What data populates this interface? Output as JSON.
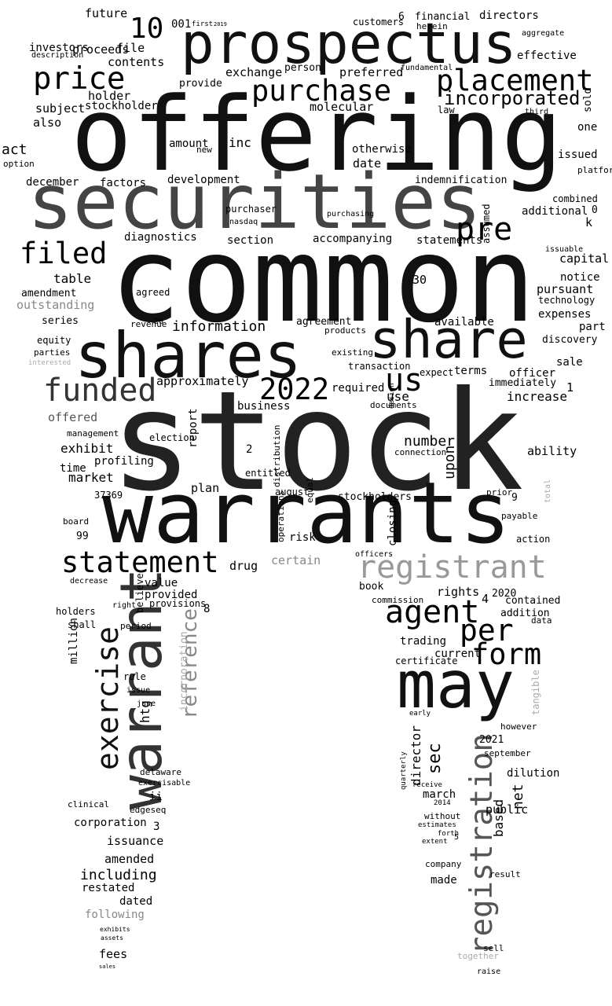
{
  "default_color": "#000000",
  "words": [
    {
      "text": "offering",
      "color": "#111111"
    },
    {
      "text": "common",
      "color": "#111111"
    },
    {
      "text": "stock",
      "color": "#222222"
    },
    {
      "text": "prospectus",
      "color": "#111111"
    },
    {
      "text": "securities",
      "color": "#444444"
    },
    {
      "text": "shares",
      "color": "#111111"
    },
    {
      "text": "share",
      "color": "#111111"
    },
    {
      "text": "warrants",
      "color": "#111111"
    },
    {
      "text": "warrant",
      "color": "#333333"
    },
    {
      "text": "may",
      "color": "#111111"
    },
    {
      "text": "registration",
      "color": "#555555"
    },
    {
      "text": "reference",
      "color": "#888888"
    },
    {
      "text": "exercise",
      "color": "#111111"
    },
    {
      "text": "registrant",
      "color": "#999999"
    },
    {
      "text": "statement"
    },
    {
      "text": "funded",
      "color": "#333333"
    },
    {
      "text": "2022"
    },
    {
      "text": "us"
    },
    {
      "text": "agent"
    },
    {
      "text": "per"
    },
    {
      "text": "form"
    },
    {
      "text": "pre"
    },
    {
      "text": "purchase"
    },
    {
      "text": "placement"
    },
    {
      "text": "price"
    },
    {
      "text": "filed"
    },
    {
      "text": "10"
    },
    {
      "text": "incorporated"
    },
    {
      "text": "sec"
    },
    {
      "text": "director"
    },
    {
      "text": "based"
    },
    {
      "text": "net"
    },
    {
      "text": "upon"
    },
    {
      "text": "closing"
    },
    {
      "text": "million"
    },
    {
      "text": "htg"
    },
    {
      "text": "incorporation",
      "color": "#aaaaaa"
    },
    {
      "text": "tangible",
      "color": "#aaaaaa"
    },
    {
      "text": "report"
    },
    {
      "text": "distribution"
    },
    {
      "text": "operations"
    },
    {
      "text": "equal"
    },
    {
      "text": "believe"
    },
    {
      "text": "sold"
    },
    {
      "text": "assumed"
    },
    {
      "text": "quarterly"
    },
    {
      "text": "design"
    },
    {
      "text": "total",
      "color": "#aaaaaa"
    },
    {
      "text": "future"
    },
    {
      "text": "001"
    },
    {
      "text": "first"
    },
    {
      "text": "2019"
    },
    {
      "text": "proceeds"
    },
    {
      "text": "file"
    },
    {
      "text": "investors"
    },
    {
      "text": "description"
    },
    {
      "text": "contents"
    },
    {
      "text": "holder"
    },
    {
      "text": "stockholder"
    },
    {
      "text": "subject"
    },
    {
      "text": "also"
    },
    {
      "text": "act"
    },
    {
      "text": "option"
    },
    {
      "text": "december"
    },
    {
      "text": "factors"
    },
    {
      "text": "development"
    },
    {
      "text": "amount"
    },
    {
      "text": "inc"
    },
    {
      "text": "new"
    },
    {
      "text": "exchange"
    },
    {
      "text": "person"
    },
    {
      "text": "preferred"
    },
    {
      "text": "provide"
    },
    {
      "text": "molecular"
    },
    {
      "text": "otherwise"
    },
    {
      "text": "date"
    },
    {
      "text": "customers"
    },
    {
      "text": "6"
    },
    {
      "text": "financial"
    },
    {
      "text": "directors"
    },
    {
      "text": "herein"
    },
    {
      "text": "effective"
    },
    {
      "text": "aggregate"
    },
    {
      "text": "fundamental"
    },
    {
      "text": "law"
    },
    {
      "text": "third"
    },
    {
      "text": "one"
    },
    {
      "text": "issued"
    },
    {
      "text": "platform"
    },
    {
      "text": "indemnification"
    },
    {
      "text": "additional"
    },
    {
      "text": "combined"
    },
    {
      "text": "0"
    },
    {
      "text": "k"
    },
    {
      "text": "diagnostics"
    },
    {
      "text": "section"
    },
    {
      "text": "accompanying"
    },
    {
      "text": "statements"
    },
    {
      "text": "nasdaq"
    },
    {
      "text": "purchaser"
    },
    {
      "text": "purchasing"
    },
    {
      "text": "capital"
    },
    {
      "text": "issuable"
    },
    {
      "text": "table"
    },
    {
      "text": "amendment"
    },
    {
      "text": "outstanding",
      "color": "#888888"
    },
    {
      "text": "series"
    },
    {
      "text": "agreed"
    },
    {
      "text": "notice"
    },
    {
      "text": "pursuant"
    },
    {
      "text": "technology"
    },
    {
      "text": "30"
    },
    {
      "text": "information"
    },
    {
      "text": "agreement"
    },
    {
      "text": "available"
    },
    {
      "text": "expenses"
    },
    {
      "text": "part"
    },
    {
      "text": "discovery"
    },
    {
      "text": "equity"
    },
    {
      "text": "parties"
    },
    {
      "text": "interested",
      "color": "#aaaaaa"
    },
    {
      "text": "revenue"
    },
    {
      "text": "20"
    },
    {
      "text": "products"
    },
    {
      "text": "existing"
    },
    {
      "text": "terms"
    },
    {
      "text": "officer"
    },
    {
      "text": "sale"
    },
    {
      "text": "transaction"
    },
    {
      "text": "expect"
    },
    {
      "text": "approximately"
    },
    {
      "text": "required"
    },
    {
      "text": "immediately"
    },
    {
      "text": "1"
    },
    {
      "text": "offered",
      "color": "#555555"
    },
    {
      "text": "business"
    },
    {
      "text": "use"
    },
    {
      "text": "documents"
    },
    {
      "text": "increase"
    },
    {
      "text": "management"
    },
    {
      "text": "election"
    },
    {
      "text": "exhibit"
    },
    {
      "text": "number"
    },
    {
      "text": "connection"
    },
    {
      "text": "ability"
    },
    {
      "text": "2"
    },
    {
      "text": "time"
    },
    {
      "text": "profiling"
    },
    {
      "text": "market"
    },
    {
      "text": "entitled"
    },
    {
      "text": "37369"
    },
    {
      "text": "plan"
    },
    {
      "text": "august"
    },
    {
      "text": "stockholders"
    },
    {
      "text": "prior"
    },
    {
      "text": "9"
    },
    {
      "text": "board"
    },
    {
      "text": "99"
    },
    {
      "text": "payable"
    },
    {
      "text": "risk"
    },
    {
      "text": "action"
    },
    {
      "text": "certain",
      "color": "#888888"
    },
    {
      "text": "officers"
    },
    {
      "text": "drug"
    },
    {
      "text": "value"
    },
    {
      "text": "provided"
    },
    {
      "text": "provisions"
    },
    {
      "text": "8"
    },
    {
      "text": "book"
    },
    {
      "text": "rights"
    },
    {
      "text": "2020"
    },
    {
      "text": "4"
    },
    {
      "text": "commission"
    },
    {
      "text": "contained"
    },
    {
      "text": "addition"
    },
    {
      "text": "decrease"
    },
    {
      "text": "holders"
    },
    {
      "text": "shall"
    },
    {
      "text": "right"
    },
    {
      "text": "period"
    },
    {
      "text": "data"
    },
    {
      "text": "trading"
    },
    {
      "text": "current"
    },
    {
      "text": "certificate"
    },
    {
      "text": "rule"
    },
    {
      "text": "issue"
    },
    {
      "text": "june"
    },
    {
      "text": "early"
    },
    {
      "text": "however"
    },
    {
      "text": "2021"
    },
    {
      "text": "september"
    },
    {
      "text": "dilution"
    },
    {
      "text": "delaware"
    },
    {
      "text": "exercisable"
    },
    {
      "text": "ii"
    },
    {
      "text": "edgeseq"
    },
    {
      "text": "clinical"
    },
    {
      "text": "march"
    },
    {
      "text": "receive"
    },
    {
      "text": "2014"
    },
    {
      "text": "public"
    },
    {
      "text": "corporation"
    },
    {
      "text": "3"
    },
    {
      "text": "issuance"
    },
    {
      "text": "without"
    },
    {
      "text": "estimates"
    },
    {
      "text": "5"
    },
    {
      "text": "extent"
    },
    {
      "text": "forth"
    },
    {
      "text": "amended"
    },
    {
      "text": "including"
    },
    {
      "text": "restated"
    },
    {
      "text": "dated"
    },
    {
      "text": "following",
      "color": "#888888"
    },
    {
      "text": "company"
    },
    {
      "text": "result"
    },
    {
      "text": "made"
    },
    {
      "text": "fees"
    },
    {
      "text": "sell"
    },
    {
      "text": "together",
      "color": "#aaaaaa"
    },
    {
      "text": "raise"
    },
    {
      "text": "exhibits"
    },
    {
      "text": "assets"
    },
    {
      "text": "sales"
    }
  ]
}
